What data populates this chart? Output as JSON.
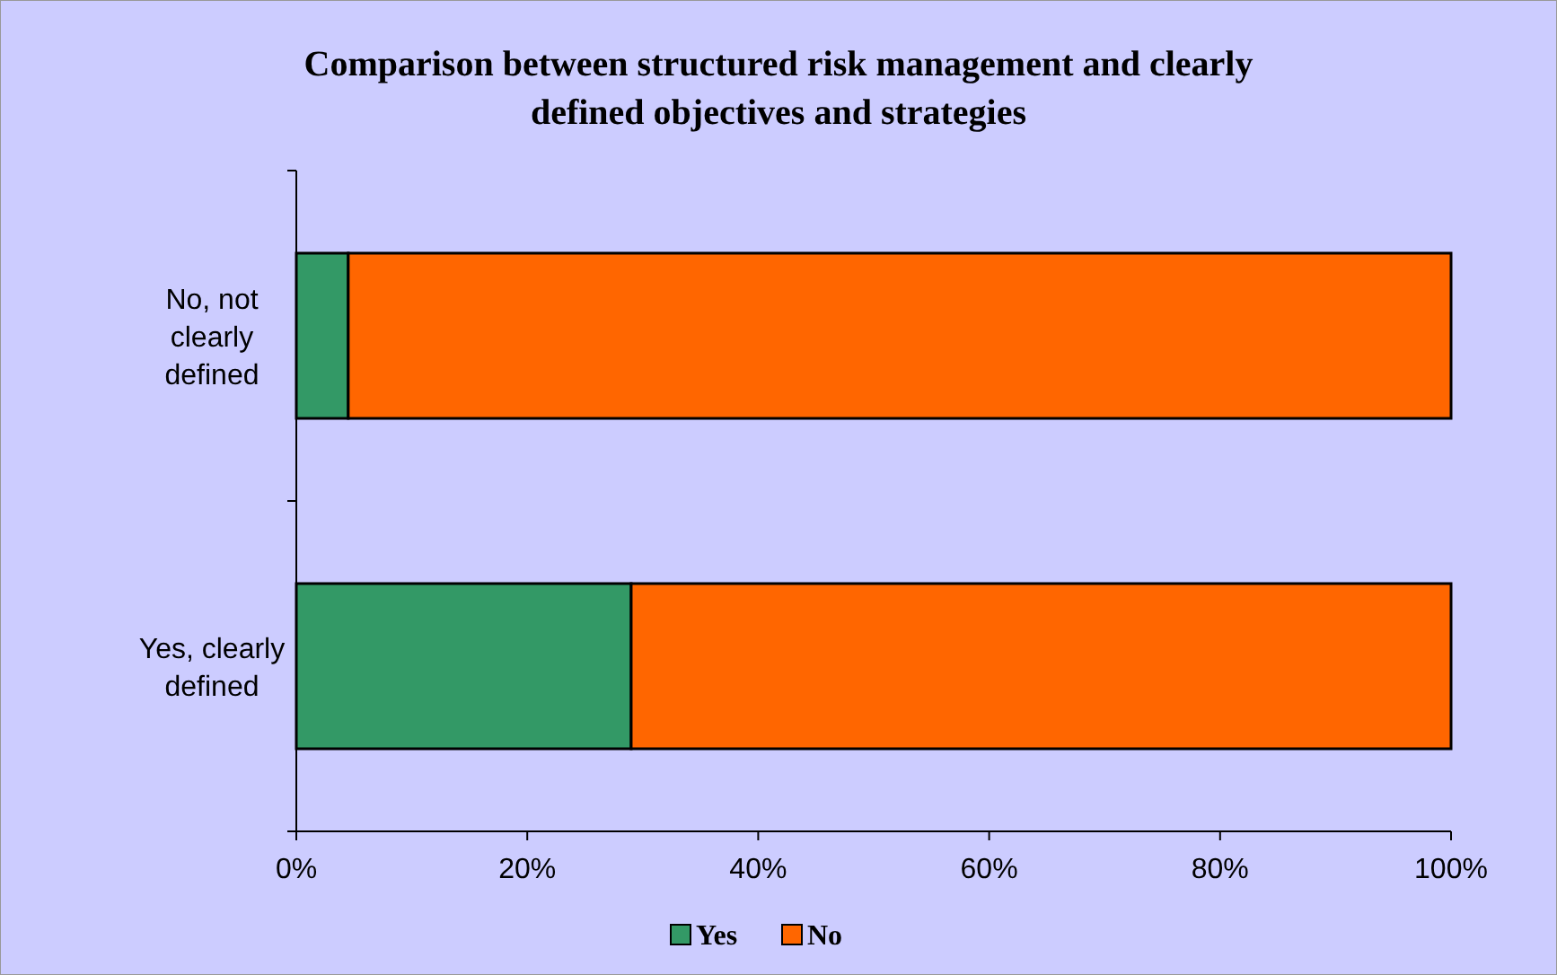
{
  "chart_data": {
    "type": "bar",
    "orientation": "horizontal",
    "stacked": true,
    "title": "Comparison between structured risk management and clearly defined objectives and strategies",
    "categories": [
      "No, not clearly defined",
      "Yes, clearly defined"
    ],
    "series": [
      {
        "name": "Yes",
        "color": "#339966",
        "values": [
          4.5,
          29
        ]
      },
      {
        "name": "No",
        "color": "#ff6600",
        "values": [
          95.5,
          71
        ]
      }
    ],
    "xlim": [
      0,
      100
    ],
    "xticks": [
      {
        "value": 0,
        "label": "0%"
      },
      {
        "value": 20,
        "label": "20%"
      },
      {
        "value": 40,
        "label": "40%"
      },
      {
        "value": 60,
        "label": "60%"
      },
      {
        "value": 80,
        "label": "80%"
      },
      {
        "value": 100,
        "label": "100%"
      }
    ],
    "legend": "bottom",
    "grid": false
  }
}
